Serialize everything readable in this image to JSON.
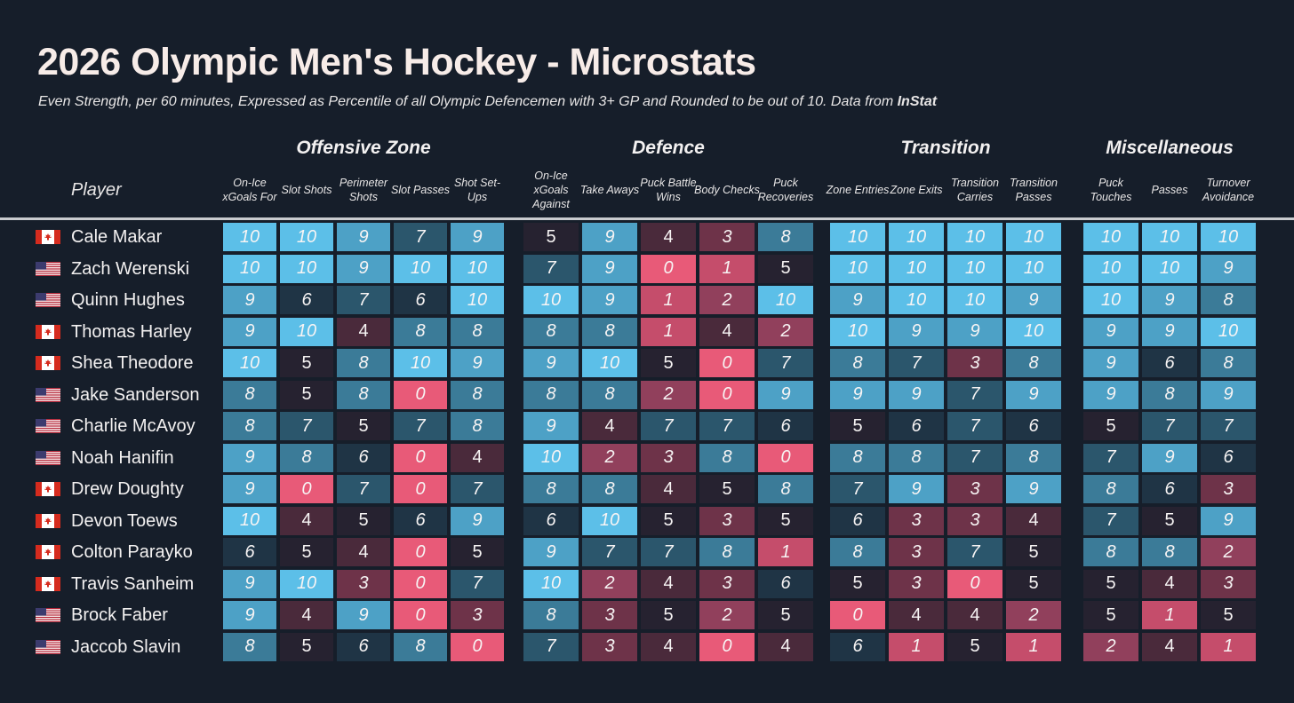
{
  "title": "2026 Olympic Men's Hockey - Microstats",
  "subtitle": "Even Strength, per 60 minutes, Expressed as Percentile of all Olympic Defencemen with 3+ GP and Rounded to be out of 10. Data from ",
  "source": "InStat",
  "player_header": "Player",
  "colors": {
    "background": "#161e2a",
    "low": "#e85a78",
    "mid": "#1e2633",
    "high": "#5cbfe8"
  },
  "chart_data": {
    "type": "heatmap",
    "title": "2026 Olympic Men's Hockey - Microstats",
    "value_range": [
      0,
      10
    ],
    "groups": [
      {
        "name": "Offensive Zone",
        "columns": [
          "On-Ice xGoals For",
          "Slot Shots",
          "Perimeter Shots",
          "Slot Passes",
          "Shot Set-Ups"
        ]
      },
      {
        "name": "Defence",
        "columns": [
          "On-Ice xGoals Against",
          "Take Aways",
          "Puck Battle Wins",
          "Body Checks",
          "Puck Recoveries"
        ]
      },
      {
        "name": "Transition",
        "columns": [
          "Zone Entries",
          "Zone Exits",
          "Transition Carries",
          "Transition Passes"
        ]
      },
      {
        "name": "Miscellaneous",
        "columns": [
          "Puck Touches",
          "Passes",
          "Turnover Avoidance"
        ]
      }
    ],
    "players": [
      {
        "name": "Cale Makar",
        "country": "CAN",
        "values": [
          10,
          10,
          9,
          7,
          9,
          5,
          9,
          4,
          3,
          8,
          10,
          10,
          10,
          10,
          10,
          10,
          10
        ]
      },
      {
        "name": "Zach Werenski",
        "country": "USA",
        "values": [
          10,
          10,
          9,
          10,
          10,
          7,
          9,
          0,
          1,
          5,
          10,
          10,
          10,
          10,
          10,
          10,
          9
        ]
      },
      {
        "name": "Quinn Hughes",
        "country": "USA",
        "values": [
          9,
          6,
          7,
          6,
          10,
          10,
          9,
          1,
          2,
          10,
          9,
          10,
          10,
          9,
          10,
          9,
          8
        ]
      },
      {
        "name": "Thomas Harley",
        "country": "CAN",
        "values": [
          9,
          10,
          4,
          8,
          8,
          8,
          8,
          1,
          4,
          2,
          10,
          9,
          9,
          10,
          9,
          9,
          10
        ]
      },
      {
        "name": "Shea Theodore",
        "country": "CAN",
        "values": [
          10,
          5,
          8,
          10,
          9,
          9,
          10,
          5,
          0,
          7,
          8,
          7,
          3,
          8,
          9,
          6,
          8
        ]
      },
      {
        "name": "Jake Sanderson",
        "country": "USA",
        "values": [
          8,
          5,
          8,
          0,
          8,
          8,
          8,
          2,
          0,
          9,
          9,
          9,
          7,
          9,
          9,
          8,
          9
        ]
      },
      {
        "name": "Charlie McAvoy",
        "country": "USA",
        "values": [
          8,
          7,
          5,
          7,
          8,
          9,
          4,
          7,
          7,
          6,
          5,
          6,
          7,
          6,
          5,
          7,
          7
        ]
      },
      {
        "name": "Noah Hanifin",
        "country": "USA",
        "values": [
          9,
          8,
          6,
          0,
          4,
          10,
          2,
          3,
          8,
          0,
          8,
          8,
          7,
          8,
          7,
          9,
          6
        ]
      },
      {
        "name": "Drew Doughty",
        "country": "CAN",
        "values": [
          9,
          0,
          7,
          0,
          7,
          8,
          8,
          4,
          5,
          8,
          7,
          9,
          3,
          9,
          8,
          6,
          3
        ]
      },
      {
        "name": "Devon Toews",
        "country": "CAN",
        "values": [
          10,
          4,
          5,
          6,
          9,
          6,
          10,
          5,
          3,
          5,
          6,
          3,
          3,
          4,
          7,
          5,
          9
        ]
      },
      {
        "name": "Colton Parayko",
        "country": "CAN",
        "values": [
          6,
          5,
          4,
          0,
          5,
          9,
          7,
          7,
          8,
          1,
          8,
          3,
          7,
          5,
          8,
          8,
          2
        ]
      },
      {
        "name": "Travis Sanheim",
        "country": "CAN",
        "values": [
          9,
          10,
          3,
          0,
          7,
          10,
          2,
          4,
          3,
          6,
          5,
          3,
          0,
          5,
          5,
          4,
          3
        ]
      },
      {
        "name": "Brock Faber",
        "country": "USA",
        "values": [
          9,
          4,
          9,
          0,
          3,
          8,
          3,
          5,
          2,
          5,
          0,
          4,
          4,
          2,
          5,
          1,
          5
        ]
      },
      {
        "name": "Jaccob Slavin",
        "country": "USA",
        "values": [
          8,
          5,
          6,
          8,
          0,
          7,
          3,
          4,
          0,
          4,
          6,
          1,
          5,
          1,
          2,
          4,
          1
        ]
      }
    ]
  }
}
